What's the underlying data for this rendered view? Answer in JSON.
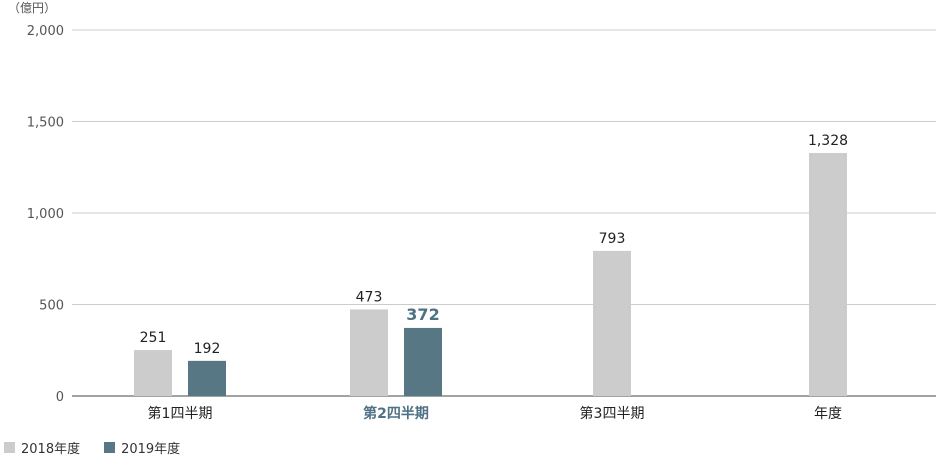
{
  "chart_data": {
    "type": "bar",
    "unit_label": "（億円）",
    "categories": [
      "第1四半期",
      "第2四半期",
      "第3四半期",
      "年度"
    ],
    "highlight_category_index": 1,
    "series": [
      {
        "name": "2018年度",
        "color": "#cccccc",
        "values": [
          251,
          473,
          793,
          1328
        ],
        "value_labels": [
          "251",
          "473",
          "793",
          "1,328"
        ]
      },
      {
        "name": "2019年度",
        "color": "#587785",
        "values": [
          192,
          372,
          null,
          null
        ],
        "value_labels": [
          "192",
          "372",
          "",
          ""
        ]
      }
    ],
    "highlight_value": {
      "series_index": 1,
      "category_index": 1,
      "color": "#4f7185"
    },
    "yticks": [
      "0",
      "500",
      "1,000",
      "1,500",
      "2,000"
    ],
    "ylim": [
      0,
      2000
    ],
    "grid": true,
    "legend": "bottom-left"
  }
}
